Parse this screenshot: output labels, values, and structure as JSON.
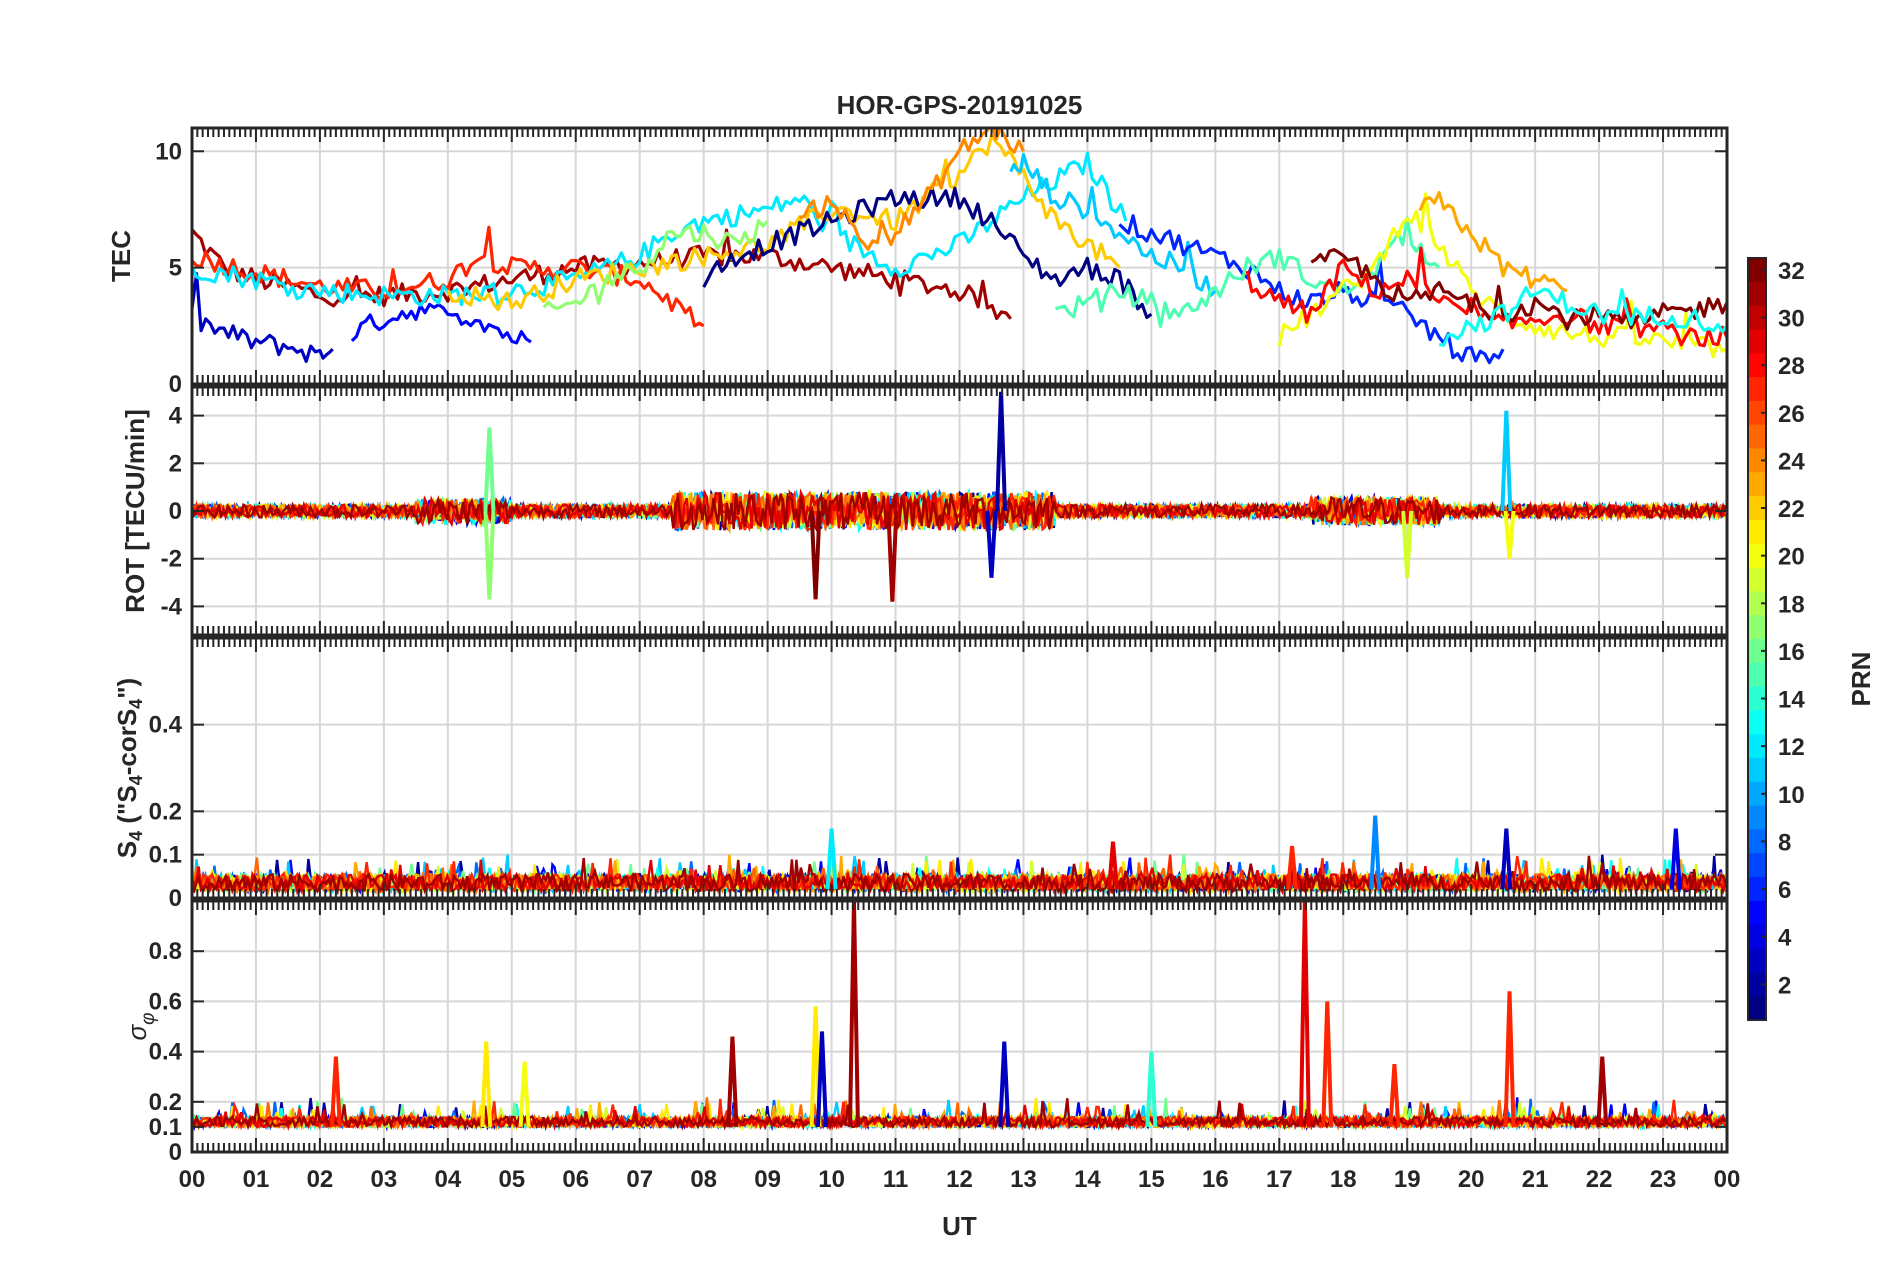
{
  "chart_data": {
    "type": "line",
    "title": "HOR-GPS-20191025",
    "xlabel": "UT",
    "x_tick_labels": [
      "00",
      "01",
      "02",
      "03",
      "04",
      "05",
      "06",
      "07",
      "08",
      "09",
      "10",
      "11",
      "12",
      "13",
      "14",
      "15",
      "16",
      "17",
      "18",
      "19",
      "20",
      "21",
      "22",
      "23",
      "00"
    ],
    "xlim": [
      0,
      24
    ],
    "colorbar": {
      "label": "PRN",
      "range": [
        1,
        32
      ],
      "tick_labels": [
        "2",
        "4",
        "6",
        "8",
        "10",
        "12",
        "14",
        "16",
        "18",
        "20",
        "22",
        "24",
        "26",
        "28",
        "30",
        "32"
      ],
      "colormap": "jet"
    },
    "panels": [
      {
        "ylabel": "TEC",
        "ylim": [
          0,
          11
        ],
        "y_ticks": [
          0,
          5,
          10
        ],
        "y_tick_labels": [
          "0",
          "5",
          "10"
        ],
        "series": [
          {
            "prn": 31,
            "x": [
              0,
              0.5,
              1,
              1.5,
              2,
              3,
              4,
              5,
              6,
              7,
              8,
              9,
              10,
              11,
              12,
              12.8
            ],
            "y": [
              6.5,
              5,
              4.5,
              4.2,
              3.8,
              3.8,
              4,
              4.5,
              5,
              5.2,
              5.5,
              5.5,
              5,
              4.5,
              4,
              2.8
            ]
          },
          {
            "prn": 27,
            "x": [
              0,
              1,
              2,
              3,
              4,
              4.5,
              5,
              6,
              7,
              7.5,
              8
            ],
            "y": [
              5.5,
              4.8,
              4.2,
              4,
              4.5,
              5.5,
              5,
              5,
              4.5,
              3.5,
              2.5
            ]
          },
          {
            "prn": 3,
            "x": [
              0,
              0.5,
              1,
              1.5,
              2,
              2.2
            ],
            "y": [
              2.8,
              2.2,
              1.8,
              1.6,
              1.2,
              1.5
            ]
          },
          {
            "prn": 5,
            "x": [
              2.5,
              3,
              3.5,
              4,
              4.5,
              5,
              5.3
            ],
            "y": [
              2.2,
              2.8,
              3.2,
              3,
              2.8,
              2,
              1.8
            ]
          },
          {
            "prn": 12,
            "x": [
              0,
              1,
              2,
              3,
              4,
              5,
              6,
              7,
              7.5,
              8,
              9,
              9.5,
              10,
              11,
              12,
              13,
              14,
              14.6
            ],
            "y": [
              5,
              4.5,
              4,
              3.8,
              3.8,
              4,
              4.5,
              5.5,
              6.5,
              7,
              7.5,
              8,
              6.5,
              5,
              6,
              8,
              9.5,
              7
            ]
          },
          {
            "prn": 22,
            "x": [
              4,
              5,
              6,
              7,
              8,
              9,
              10,
              11,
              12,
              12.5,
              13,
              13.5,
              14,
              14.5
            ],
            "y": [
              4,
              3.5,
              4.5,
              5,
              5.5,
              6,
              7.5,
              7,
              9,
              10.5,
              9,
              7,
              6,
              5
            ]
          },
          {
            "prn": 17,
            "x": [
              5.5,
              6,
              6.5,
              7,
              7.5,
              8,
              8.5,
              9
            ],
            "y": [
              3,
              3.5,
              4.5,
              5,
              6.5,
              6.5,
              6,
              7
            ]
          },
          {
            "prn": 1,
            "x": [
              8,
              8.5,
              9,
              9.5,
              10,
              11,
              12,
              12.5,
              13,
              13.5,
              14,
              14.5,
              15
            ],
            "y": [
              4.5,
              5.5,
              6,
              6.5,
              7,
              8,
              8,
              7,
              5.5,
              4.5,
              5,
              4.5,
              3
            ]
          },
          {
            "prn": 24,
            "x": [
              9.5,
              10,
              10.5,
              11,
              11.5,
              12,
              12.5,
              13
            ],
            "y": [
              7,
              8,
              6,
              6.5,
              8,
              10,
              11,
              10
            ]
          },
          {
            "prn": 11,
            "x": [
              12.8,
              13,
              13.5,
              14,
              14.5,
              15,
              15.5,
              16
            ],
            "y": [
              9,
              9.5,
              8,
              7.5,
              6.5,
              5.5,
              5,
              4
            ]
          },
          {
            "prn": 6,
            "x": [
              14.5,
              15,
              15.5,
              16,
              16.5,
              17,
              17.5,
              18,
              18.5,
              19,
              19.5,
              20,
              20.5
            ],
            "y": [
              7,
              6.5,
              6,
              5.5,
              5,
              4,
              3.5,
              4,
              3.5,
              3,
              2,
              1,
              1.5
            ]
          },
          {
            "prn": 15,
            "x": [
              13.5,
              14,
              14.5,
              15,
              15.5,
              16,
              16.5,
              17,
              17.5,
              18,
              18.5,
              19,
              19.5
            ],
            "y": [
              3,
              3.5,
              4,
              3.5,
              3,
              4,
              5,
              5.5,
              4.5,
              4,
              5,
              6.5,
              5
            ]
          },
          {
            "prn": 20,
            "x": [
              17,
              17.5,
              18,
              18.5,
              19,
              19.5,
              20,
              20.5,
              21,
              21.5,
              22,
              22.5,
              23,
              23.5,
              24
            ],
            "y": [
              2,
              3,
              4,
              5,
              7.5,
              6,
              4,
              3,
              2.5,
              2.2,
              2,
              2,
              1.8,
              1.6,
              1.5
            ]
          },
          {
            "prn": 23,
            "x": [
              19.2,
              19.5,
              20,
              20.5,
              21,
              21.5
            ],
            "y": [
              7.5,
              7.8,
              6.5,
              5,
              4.5,
              4
            ]
          },
          {
            "prn": 28,
            "x": [
              16.5,
              17,
              17.5,
              18,
              18.5,
              19,
              19.5,
              20,
              20.5,
              21,
              21.5,
              22,
              22.5,
              23,
              23.5,
              24
            ],
            "y": [
              4.5,
              3.5,
              3,
              5,
              4,
              4.5,
              3.5,
              3,
              2.5,
              2.8,
              3,
              2.5,
              2.5,
              2.3,
              2,
              2
            ]
          },
          {
            "prn": 32,
            "x": [
              17.5,
              18,
              18.5,
              19,
              19.5,
              20,
              20.5,
              21,
              21.5,
              22,
              22.5,
              23,
              23.5,
              24
            ],
            "y": [
              5,
              5.5,
              4.5,
              3.5,
              4,
              3.5,
              3,
              3.5,
              2.8,
              3,
              2.5,
              3,
              3.2,
              3.5
            ]
          },
          {
            "prn": 13,
            "x": [
              19.5,
              20,
              20.5,
              21,
              21.5,
              22,
              22.5,
              23,
              23.5,
              24
            ],
            "y": [
              2,
              2.5,
              3,
              4,
              3.5,
              3,
              2.8,
              3,
              2.8,
              2.5
            ]
          }
        ]
      },
      {
        "ylabel": "ROT [TECU/min]",
        "ylim": [
          -5.2,
          5.2
        ],
        "y_ticks": [
          -4,
          -2,
          0,
          2,
          4
        ],
        "y_tick_labels": [
          "-4",
          "-2",
          "0",
          "2",
          "4"
        ],
        "spikes": [
          {
            "prn": 17,
            "x": 4.65,
            "y": -3.7
          },
          {
            "prn": 16,
            "x": 4.65,
            "y": 3.5
          },
          {
            "prn": 32,
            "x": 9.75,
            "y": -3.7
          },
          {
            "prn": 31,
            "x": 10.95,
            "y": -3.8
          },
          {
            "prn": 2,
            "x": 12.65,
            "y": 5.0
          },
          {
            "prn": 3,
            "x": 12.5,
            "y": -2.8
          },
          {
            "prn": 11,
            "x": 20.55,
            "y": 4.2
          },
          {
            "prn": 19,
            "x": 19.0,
            "y": -2.8
          },
          {
            "prn": 20,
            "x": 20.6,
            "y": -2.0
          }
        ]
      },
      {
        "ylabel": "S4 (\"S4-corS4\")",
        "ylim": [
          0,
          0.6
        ],
        "y_ticks": [
          0,
          0.1,
          0.2,
          0.4
        ],
        "y_tick_labels": [
          "0",
          "0.1",
          "0.2",
          "0.4"
        ],
        "spikes": [
          {
            "prn": 9,
            "x": 18.5,
            "y": 0.19
          },
          {
            "prn": 3,
            "x": 20.55,
            "y": 0.16
          },
          {
            "prn": 4,
            "x": 23.2,
            "y": 0.16
          },
          {
            "prn": 12,
            "x": 10.0,
            "y": 0.16
          },
          {
            "prn": 27,
            "x": 17.2,
            "y": 0.12
          },
          {
            "prn": 29,
            "x": 14.4,
            "y": 0.13
          }
        ]
      },
      {
        "ylabel": "σφ",
        "ylim": [
          0,
          1
        ],
        "y_ticks": [
          0,
          0.1,
          0.2,
          0.4,
          0.6,
          0.8
        ],
        "y_tick_labels": [
          "0",
          "0.1",
          "0.2",
          "0.4",
          "0.6",
          "0.8"
        ],
        "spikes": [
          {
            "prn": 31,
            "x": 10.35,
            "y": 1.0
          },
          {
            "prn": 29,
            "x": 17.4,
            "y": 1.0
          },
          {
            "prn": 27,
            "x": 17.75,
            "y": 0.6
          },
          {
            "prn": 27,
            "x": 20.6,
            "y": 0.64
          },
          {
            "prn": 21,
            "x": 9.75,
            "y": 0.58
          },
          {
            "prn": 3,
            "x": 9.85,
            "y": 0.48
          },
          {
            "prn": 21,
            "x": 4.6,
            "y": 0.44
          },
          {
            "prn": 31,
            "x": 8.45,
            "y": 0.46
          },
          {
            "prn": 3,
            "x": 12.7,
            "y": 0.44
          },
          {
            "prn": 27,
            "x": 2.25,
            "y": 0.38
          },
          {
            "prn": 14,
            "x": 15.0,
            "y": 0.4
          },
          {
            "prn": 31,
            "x": 22.05,
            "y": 0.38
          },
          {
            "prn": 27,
            "x": 18.8,
            "y": 0.35
          },
          {
            "prn": 20,
            "x": 5.2,
            "y": 0.36
          }
        ]
      }
    ]
  }
}
